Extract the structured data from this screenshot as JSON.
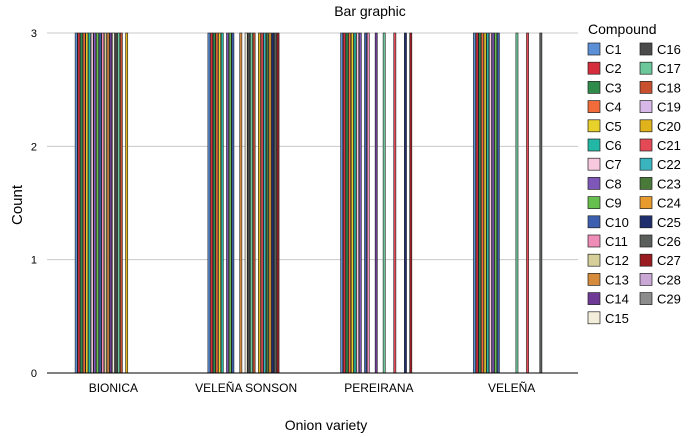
{
  "chart_data": {
    "type": "bar",
    "title": "Bar graphic",
    "xlabel": "Onion variety",
    "ylabel": "Count",
    "ylim": [
      0,
      3
    ],
    "yticks": [
      0,
      1,
      2,
      3
    ],
    "grid": true,
    "legend_title": "Compound",
    "legend_position": "right",
    "categories": [
      "BIONICA",
      "VELEÑA SONSON",
      "PEREIRANA",
      "VELEÑA"
    ],
    "series": [
      {
        "name": "C1",
        "color": "#5b8fd6",
        "values": [
          3,
          3,
          3,
          3
        ]
      },
      {
        "name": "C2",
        "color": "#d62d3c",
        "values": [
          3,
          3,
          3,
          3
        ]
      },
      {
        "name": "C3",
        "color": "#2e8b4a",
        "values": [
          3,
          3,
          3,
          3
        ]
      },
      {
        "name": "C4",
        "color": "#f26b3a",
        "values": [
          3,
          3,
          3,
          3
        ]
      },
      {
        "name": "C5",
        "color": "#e8d12a",
        "values": [
          3,
          3,
          3,
          3
        ]
      },
      {
        "name": "C6",
        "color": "#23b8a6",
        "values": [
          3,
          3,
          3,
          3
        ]
      },
      {
        "name": "C7",
        "color": "#f7c8de",
        "values": [
          3,
          0,
          3,
          3
        ]
      },
      {
        "name": "C8",
        "color": "#7e57b8",
        "values": [
          3,
          3,
          3,
          3
        ]
      },
      {
        "name": "C9",
        "color": "#66c04d",
        "values": [
          3,
          3,
          0,
          3
        ]
      },
      {
        "name": "C10",
        "color": "#3c5fb0",
        "values": [
          3,
          3,
          3,
          3
        ]
      },
      {
        "name": "C11",
        "color": "#f08cb8",
        "values": [
          3,
          0,
          3,
          0
        ]
      },
      {
        "name": "C12",
        "color": "#d6cf9a",
        "values": [
          3,
          0,
          0,
          0
        ]
      },
      {
        "name": "C13",
        "color": "#d68a3c",
        "values": [
          3,
          3,
          0,
          0
        ]
      },
      {
        "name": "C14",
        "color": "#6f3a96",
        "values": [
          3,
          0,
          3,
          0
        ]
      },
      {
        "name": "C15",
        "color": "#f2eedb",
        "values": [
          3,
          3,
          0,
          0
        ]
      },
      {
        "name": "C16",
        "color": "#4b4b4b",
        "values": [
          3,
          3,
          0,
          0
        ]
      },
      {
        "name": "C17",
        "color": "#6cc79a",
        "values": [
          3,
          3,
          3,
          3
        ]
      },
      {
        "name": "C18",
        "color": "#c8502f",
        "values": [
          3,
          3,
          0,
          0
        ]
      },
      {
        "name": "C19",
        "color": "#d8b8e8",
        "values": [
          0,
          0,
          0,
          0
        ]
      },
      {
        "name": "C20",
        "color": "#e0b21c",
        "values": [
          3,
          3,
          0,
          0
        ]
      },
      {
        "name": "C21",
        "color": "#e44a55",
        "values": [
          0,
          3,
          3,
          3
        ]
      },
      {
        "name": "C22",
        "color": "#3ab5c0",
        "values": [
          0,
          3,
          0,
          0
        ]
      },
      {
        "name": "C23",
        "color": "#4a7a3a",
        "values": [
          0,
          3,
          0,
          0
        ]
      },
      {
        "name": "C24",
        "color": "#e89a2c",
        "values": [
          0,
          3,
          0,
          0
        ]
      },
      {
        "name": "C25",
        "color": "#1f2f6e",
        "values": [
          0,
          3,
          3,
          0
        ]
      },
      {
        "name": "C26",
        "color": "#5a5f5c",
        "values": [
          0,
          3,
          0,
          3
        ]
      },
      {
        "name": "C27",
        "color": "#9a1c20",
        "values": [
          0,
          3,
          3,
          0
        ]
      },
      {
        "name": "C28",
        "color": "#c9a8d6",
        "values": [
          0,
          0,
          0,
          0
        ]
      },
      {
        "name": "C29",
        "color": "#8c8c8c",
        "values": [
          0,
          0,
          0,
          0
        ]
      }
    ]
  }
}
